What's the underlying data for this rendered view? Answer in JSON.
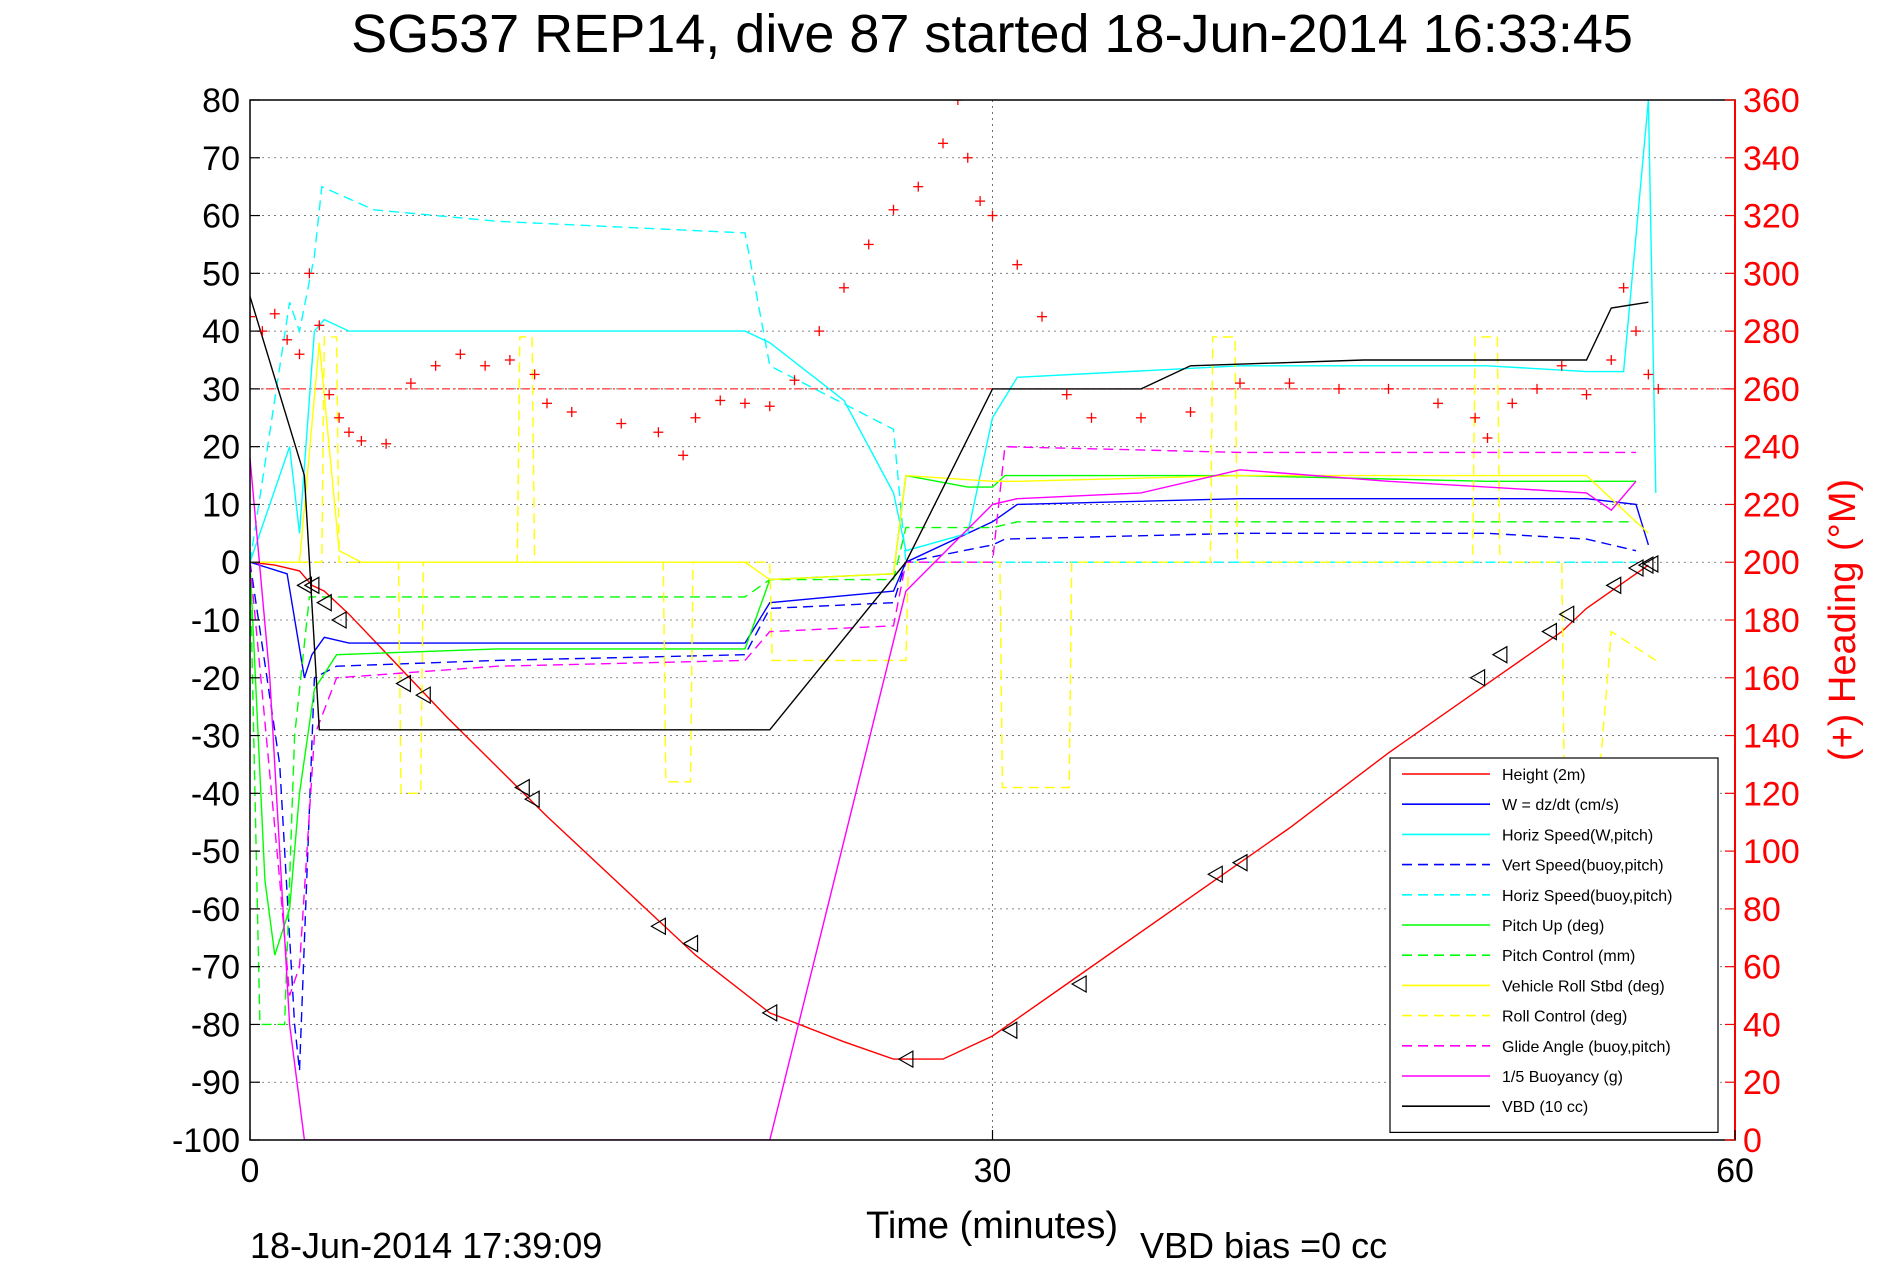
{
  "chart_data": {
    "type": "line",
    "title": "SG537 REP14, dive 87 started 18-Jun-2014 16:33:45",
    "xlabel": "Time (minutes)",
    "ylabel_right": "(+) Heading (°M)",
    "footer_left": "18-Jun-2014 17:39:09",
    "footer_right": "VBD bias =0 cc",
    "xlim": [
      0,
      60
    ],
    "ylim": [
      -100,
      80
    ],
    "y2lim": [
      0,
      360
    ],
    "x_ticks": [
      "0",
      "30",
      "60"
    ],
    "y_ticks": [
      "80",
      "70",
      "60",
      "50",
      "40",
      "30",
      "20",
      "10",
      "0",
      "-10",
      "-20",
      "-30",
      "-40",
      "-50",
      "-60",
      "-70",
      "-80",
      "-90",
      "-100"
    ],
    "y2_ticks": [
      "360",
      "340",
      "320",
      "300",
      "280",
      "260",
      "240",
      "220",
      "200",
      "180",
      "160",
      "140",
      "120",
      "100",
      "80",
      "60",
      "40",
      "20",
      "0"
    ],
    "grid": true,
    "legend_position": "bottom-right",
    "colors": {
      "red": "#ff0000",
      "blue": "#0000ff",
      "cyan": "#00ffff",
      "green": "#00ff00",
      "yellow": "#ffff00",
      "magenta": "#ff00ff",
      "black": "#000000"
    },
    "series": [
      {
        "name": "Height (2m)",
        "color": "#ff0000",
        "dash": "solid",
        "x": [
          0,
          1,
          2,
          2.5,
          3,
          4,
          8,
          12,
          16,
          18,
          21,
          24,
          26,
          28,
          30,
          33,
          38,
          42,
          46,
          50,
          53,
          54,
          56.5
        ],
        "y": [
          0,
          -0.5,
          -1.5,
          -4,
          -5,
          -9,
          -27,
          -44,
          -60,
          -68,
          -78,
          -83,
          -86,
          -86,
          -82,
          -73,
          -58,
          -46,
          -33,
          -21,
          -12,
          -8,
          -0.5
        ]
      },
      {
        "name": "W = dz/dt (cm/s)",
        "color": "#0000ff",
        "dash": "solid",
        "x": [
          0,
          1.5,
          2.2,
          2.5,
          3,
          4,
          10,
          20,
          21,
          26,
          26.5,
          30,
          31,
          40,
          50,
          54,
          56,
          56.5
        ],
        "y": [
          0,
          -2,
          -20,
          -16,
          -13,
          -14,
          -14,
          -14,
          -7,
          -5,
          0,
          7,
          10,
          11,
          11,
          11,
          10,
          3
        ]
      },
      {
        "name": "Horiz Speed(W,pitch)",
        "color": "#00ffff",
        "dash": "solid",
        "x": [
          0,
          1.6,
          2,
          2.6,
          3,
          4,
          10,
          20,
          21,
          24,
          26,
          26.5,
          29,
          30,
          31,
          40,
          50,
          54,
          55.5,
          56.5,
          56.8
        ],
        "y": [
          0,
          20,
          5,
          40,
          42,
          40,
          40,
          40,
          38,
          28,
          12,
          2,
          5,
          25,
          32,
          34,
          34,
          33,
          33,
          80,
          12
        ]
      },
      {
        "name": "Vert Speed(buoy,pitch)",
        "color": "#0000ff",
        "dash": "dashed",
        "x": [
          0,
          1.2,
          1.8,
          2,
          2.6,
          3.5,
          10,
          20,
          21,
          26,
          26.5,
          30,
          30.5,
          40,
          50,
          54,
          56
        ],
        "y": [
          0,
          -35,
          -80,
          -88,
          -20,
          -18,
          -17,
          -16,
          -8,
          -7,
          0,
          3,
          4,
          5,
          5,
          4,
          2
        ]
      },
      {
        "name": "Horiz Speed(buoy,pitch)",
        "color": "#00ffff",
        "dash": "dashed",
        "x": [
          0,
          1.6,
          2,
          2.6,
          2.9,
          5,
          10,
          15,
          20,
          21,
          26,
          26.5,
          30,
          30.5,
          56
        ],
        "y": [
          0,
          45,
          40,
          53,
          65,
          61,
          59,
          58,
          57,
          34,
          23,
          0,
          0,
          0,
          0
        ]
      },
      {
        "name": "Pitch Up (deg)",
        "color": "#00ff00",
        "dash": "solid",
        "x": [
          0,
          0.6,
          1,
          1.6,
          2,
          2.6,
          3.5,
          10,
          20,
          21,
          26,
          26.5,
          29,
          30,
          30.5,
          40,
          50,
          54,
          56
        ],
        "y": [
          0,
          -55,
          -68,
          -60,
          -40,
          -22,
          -16,
          -15,
          -15,
          -3,
          -2,
          15,
          13,
          13,
          15,
          15,
          14,
          14,
          14
        ]
      },
      {
        "name": "Pitch Control (mm)",
        "color": "#00ff00",
        "dash": "dashed",
        "x": [
          0,
          0.4,
          1.4,
          1.8,
          2.4,
          20,
          21,
          26,
          26.5,
          30,
          31,
          56
        ],
        "y": [
          0,
          -80,
          -80,
          -30,
          -6,
          -6,
          -3,
          -3,
          6,
          6,
          7,
          7
        ]
      },
      {
        "name": "Vehicle Roll Stbd (deg)",
        "color": "#ffff00",
        "dash": "solid",
        "x": [
          0,
          2,
          2.8,
          3.6,
          4.5,
          10,
          20,
          21,
          26,
          26.5,
          30,
          31,
          40,
          50,
          54,
          56.5
        ],
        "y": [
          0,
          0,
          38,
          2,
          0,
          0,
          0,
          -3,
          -2,
          15,
          14,
          14,
          15,
          15,
          15,
          5
        ]
      },
      {
        "name": "Roll Control (deg)",
        "color": "#ffff00",
        "dash": "dashed",
        "x": [
          0,
          2.9,
          3,
          3.5,
          3.6,
          6,
          6.1,
          6.9,
          7,
          10.8,
          10.9,
          11.4,
          11.5,
          16.7,
          16.8,
          17.8,
          17.9,
          21,
          21.1,
          26.5,
          26.6,
          30.3,
          30.4,
          33.1,
          33.2,
          38.8,
          38.9,
          39.8,
          39.9,
          49.4,
          49.5,
          50.4,
          50.5,
          53,
          53.1,
          54.5,
          55,
          56.8
        ],
        "y": [
          0,
          0,
          39,
          39,
          0,
          0,
          -40,
          -40,
          0,
          0,
          39,
          39,
          0,
          0,
          -38,
          -38,
          0,
          0,
          -17,
          -17,
          0,
          0,
          -39,
          -39,
          0,
          0,
          39,
          39,
          0,
          0,
          39,
          39,
          0,
          0,
          -38,
          -38,
          -12,
          -17
        ]
      },
      {
        "name": "Glide Angle (buoy,pitch)",
        "color": "#ff00ff",
        "dash": "dashed",
        "x": [
          0,
          1.2,
          1.6,
          2,
          2.6,
          3.5,
          10,
          20,
          21,
          26,
          26.5,
          30,
          30.5,
          40,
          50,
          54,
          56
        ],
        "y": [
          0,
          -55,
          -75,
          -70,
          -30,
          -20,
          -18,
          -17,
          -12,
          -11,
          0,
          0,
          20,
          19,
          19,
          19,
          19
        ]
      },
      {
        "name": "1/5 Buoyancy (g)",
        "color": "#ff00ff",
        "dash": "solid",
        "x": [
          0,
          0.8,
          1.6,
          2.2,
          20,
          21,
          26.5,
          30,
          31,
          36,
          40,
          46,
          50,
          54,
          55,
          56
        ],
        "y": [
          18,
          -20,
          -80,
          -100,
          -100,
          -100,
          -5,
          10,
          11,
          12,
          16,
          14,
          13,
          12,
          9,
          14
        ]
      },
      {
        "name": "VBD (10 cc)",
        "color": "#000000",
        "dash": "solid",
        "x": [
          0,
          2.2,
          2.8,
          5,
          10,
          15,
          20,
          21,
          26.5,
          30,
          31,
          36,
          38,
          45,
          50,
          54,
          55,
          56.5
        ],
        "y": [
          46,
          15,
          -29,
          -29,
          -29,
          -29,
          -29,
          -29,
          0,
          30,
          30,
          30,
          34,
          35,
          35,
          35,
          44,
          45
        ]
      }
    ],
    "heading_series": {
      "name": "(+) Heading (°M)",
      "color": "#ff0000",
      "marker": "+",
      "x": [
        0,
        0.5,
        1,
        1.5,
        2,
        2.4,
        2.8,
        3.2,
        3.6,
        4,
        4.5,
        5.5,
        6.5,
        7.5,
        8.5,
        9.5,
        10.5,
        11.5,
        12,
        13,
        15,
        16.5,
        17.5,
        18,
        19,
        20,
        21,
        22,
        23,
        24,
        25,
        26,
        27,
        28,
        28.6,
        29,
        29.5,
        30,
        31,
        32,
        33,
        34,
        36,
        38,
        40,
        42,
        44,
        46,
        48,
        49.5,
        50,
        51,
        52,
        53,
        54,
        55,
        55.5,
        56,
        56.5,
        56.9
      ],
      "y": [
        285,
        280,
        286,
        277,
        272,
        300,
        282,
        258,
        250,
        245,
        242,
        241,
        262,
        268,
        272,
        268,
        270,
        265,
        255,
        252,
        248,
        245,
        237,
        250,
        256,
        255,
        254,
        263,
        280,
        295,
        310,
        322,
        330,
        345,
        360,
        340,
        325,
        320,
        303,
        285,
        258,
        250,
        250,
        252,
        262,
        262,
        260,
        260,
        255,
        250,
        243,
        255,
        260,
        268,
        258,
        270,
        295,
        280,
        265,
        260
      ]
    },
    "glider_markers": {
      "symbol": "triangle",
      "x": [
        2.2,
        2.5,
        3,
        3.6,
        6.2,
        7,
        11,
        11.4,
        16.5,
        17.8,
        21,
        26.5,
        30.7,
        33.5,
        39,
        40,
        49.6,
        50.5,
        52.5,
        53.2,
        55.1,
        56,
        56.4,
        56.6
      ],
      "y": [
        -4,
        -4,
        -7,
        -10,
        -21,
        -23,
        -39,
        -41,
        -63,
        -66,
        -78,
        -86,
        -81,
        -73,
        -54,
        -52,
        -20,
        -16,
        -12,
        -9,
        -4,
        -1,
        -0.5,
        -0.3
      ]
    }
  }
}
